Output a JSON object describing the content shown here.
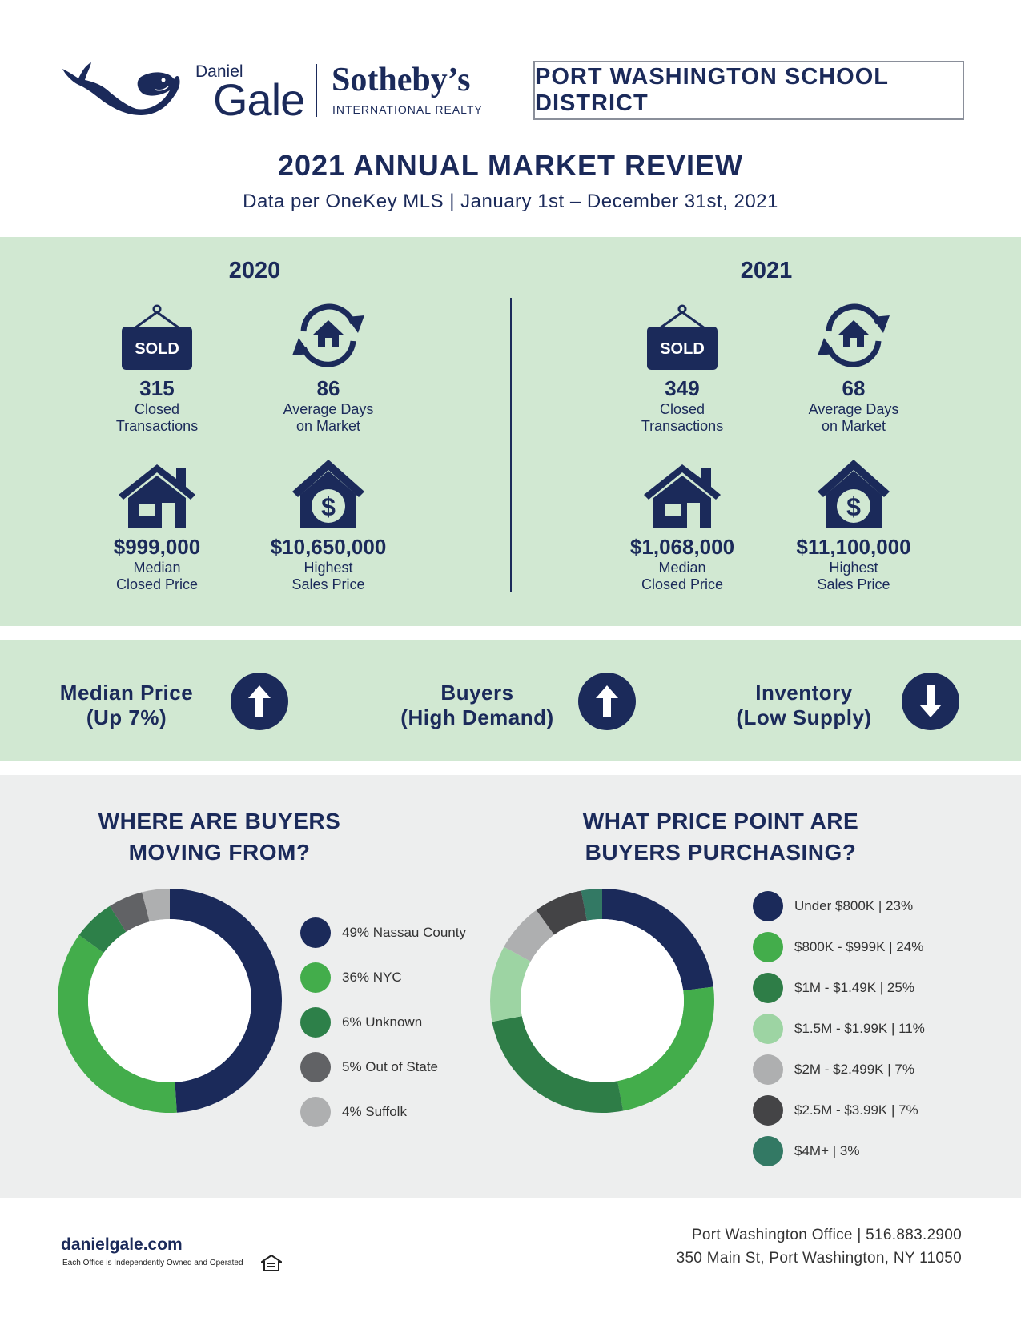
{
  "brand": {
    "daniel": "Daniel",
    "gale": "Gale",
    "sothebys": "Sotheby’s",
    "international": "INTERNATIONAL REALTY",
    "navy": "#1b2a5a"
  },
  "district": "PORT WASHINGTON SCHOOL DISTRICT",
  "title": "2021 ANNUAL MARKET REVIEW",
  "subtitle": "Data per OneKey MLS | January 1st – December 31st, 2021",
  "years": [
    {
      "year": "2020",
      "closed": {
        "value": "315",
        "label": "Closed\nTransactions",
        "icon": "sold-sign-icon",
        "sign": "SOLD"
      },
      "days": {
        "value": "86",
        "label": "Average Days\non Market",
        "icon": "house-cycle-icon"
      },
      "median": {
        "value": "$999,000",
        "label": "Median\nClosed Price",
        "icon": "house-icon"
      },
      "highest": {
        "value": "$10,650,000",
        "label": "Highest\nSales Price",
        "icon": "house-dollar-icon"
      }
    },
    {
      "year": "2021",
      "closed": {
        "value": "349",
        "label": "Closed\nTransactions",
        "icon": "sold-sign-icon",
        "sign": "SOLD"
      },
      "days": {
        "value": "68",
        "label": "Average Days\non Market",
        "icon": "house-cycle-icon"
      },
      "median": {
        "value": "$1,068,000",
        "label": "Median\nClosed Price",
        "icon": "house-icon"
      },
      "highest": {
        "value": "$11,100,000",
        "label": "Highest\nSales Price",
        "icon": "house-dollar-icon"
      }
    }
  ],
  "trends": [
    {
      "label": "Median Price\n(Up 7%)",
      "direction": "up"
    },
    {
      "label": "Buyers\n(High Demand)",
      "direction": "up"
    },
    {
      "label": "Inventory\n(Low Supply)",
      "direction": "down"
    }
  ],
  "chart_data": [
    {
      "type": "pie",
      "title": "WHERE ARE BUYERS\nMOVING FROM?",
      "categories": [
        "Nassau County",
        "NYC",
        "Unknown",
        "Out of State",
        "Suffolk"
      ],
      "values": [
        49,
        36,
        6,
        5,
        4
      ],
      "labels": [
        "49% Nassau County",
        "36% NYC",
        "6% Unknown",
        "5% Out of State",
        "4% Suffolk"
      ],
      "colors": [
        "#1b2a5a",
        "#43ad4b",
        "#2d8049",
        "#616265",
        "#aeafb0"
      ]
    },
    {
      "type": "pie",
      "title": "WHAT PRICE POINT ARE\nBUYERS PURCHASING?",
      "categories": [
        "Under $800K",
        "$800K - $999K",
        "$1M - $1.49K",
        "$1.5M - $1.99K",
        "$2M - $2.499K",
        "$2.5M - $3.99K",
        "$4M+"
      ],
      "values": [
        23,
        24,
        25,
        11,
        7,
        7,
        3
      ],
      "labels": [
        "Under $800K | 23%",
        "$800K - $999K | 24%",
        "$1M - $1.49K | 25%",
        "$1.5M - $1.99K | 11%",
        "$2M - $2.499K | 7%",
        "$2.5M - $3.99K | 7%",
        "$4M+ | 3%"
      ],
      "colors": [
        "#1b2a5a",
        "#43ad4b",
        "#2e7d47",
        "#9dd4a3",
        "#aeafb0",
        "#444446",
        "#337964"
      ]
    }
  ],
  "footer": {
    "url": "danielgale.com",
    "note": "Each Office is Independently Owned and Operated",
    "office_line1": "Port Washington Office | 516.883.2900",
    "office_line2": "350 Main St, Port Washington, NY 11050"
  }
}
